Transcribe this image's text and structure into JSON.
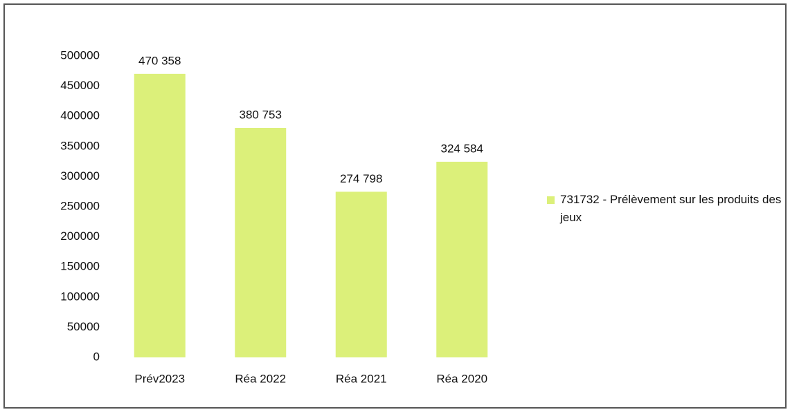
{
  "chart_data": {
    "type": "bar",
    "categories": [
      "Prév2023",
      "Réa 2022",
      "Réa 2021",
      "Réa 2020"
    ],
    "series": [
      {
        "name": "731732 - Prélèvement sur les produits des jeux",
        "color": "#dcf07a",
        "values": [
          470358,
          380753,
          274798,
          324584
        ],
        "value_labels": [
          "470 358",
          "380 753",
          "274 798",
          "324 584"
        ]
      }
    ],
    "ylim": [
      0,
      500000
    ],
    "yticks": [
      0,
      50000,
      100000,
      150000,
      200000,
      250000,
      300000,
      350000,
      400000,
      450000,
      500000
    ],
    "grid": false,
    "legend": "right"
  }
}
